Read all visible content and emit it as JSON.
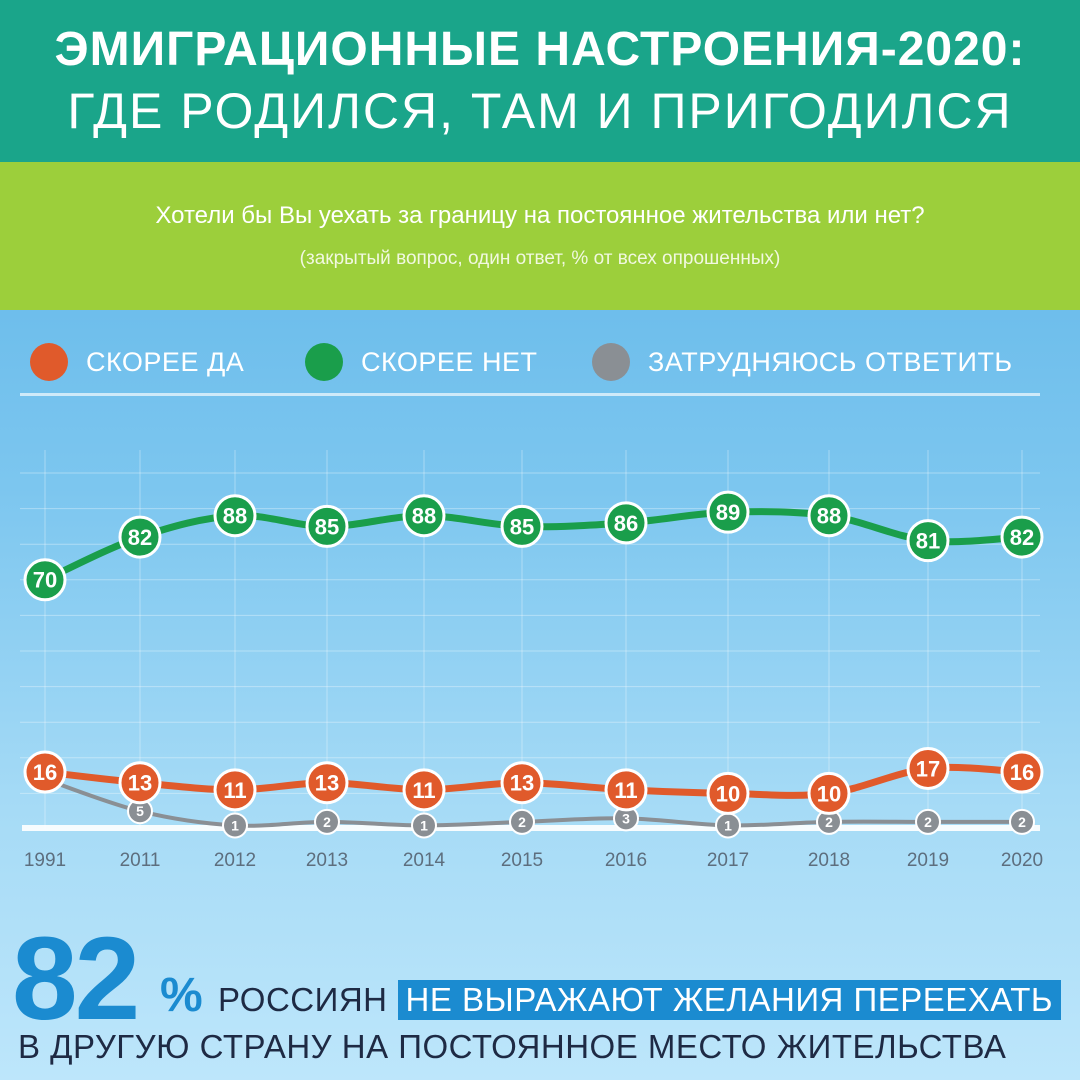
{
  "header": {
    "title_line1": "ЭМИГРАЦИОННЫЕ НАСТРОЕНИЯ-2020:",
    "title_line2": "ГДЕ РОДИЛСЯ, ТАМ И ПРИГОДИЛСЯ"
  },
  "question": {
    "text": "Хотели бы Вы уехать за границу на постоянное жительства или нет?",
    "note": "(закрытый вопрос, один ответ, % от всех опрошенных)"
  },
  "colors": {
    "yes": "#e05a2b",
    "no": "#1a9e4b",
    "undecided": "#8a8f94"
  },
  "chart_data": {
    "type": "line",
    "x": [
      "1991",
      "2011",
      "2012",
      "2013",
      "2014",
      "2015",
      "2016",
      "2017",
      "2018",
      "2019",
      "2020"
    ],
    "series": [
      {
        "name": "СКОРЕЕ ДА",
        "key": "yes",
        "values": [
          16,
          13,
          11,
          13,
          11,
          13,
          11,
          10,
          10,
          17,
          16
        ]
      },
      {
        "name": "СКОРЕЕ НЕТ",
        "key": "no",
        "values": [
          70,
          82,
          88,
          85,
          88,
          85,
          86,
          89,
          88,
          81,
          82
        ]
      },
      {
        "name": "ЗАТРУДНЯЮСЬ ОТВЕТИТЬ",
        "key": "undecided",
        "values": [
          14,
          5,
          1,
          2,
          1,
          2,
          3,
          1,
          2,
          2,
          2
        ]
      }
    ],
    "ylim": [
      0,
      100
    ],
    "grid": true,
    "legend": "top"
  },
  "summary": {
    "number": "82",
    "percent": "%",
    "text_before": "РОССИЯН",
    "highlight": "НЕ ВЫРАЖАЮТ ЖЕЛАНИЯ ПЕРЕЕХАТЬ",
    "line2": "В ДРУГУЮ СТРАНУ НА ПОСТОЯННОЕ МЕСТО ЖИТЕЛЬСТВА"
  }
}
